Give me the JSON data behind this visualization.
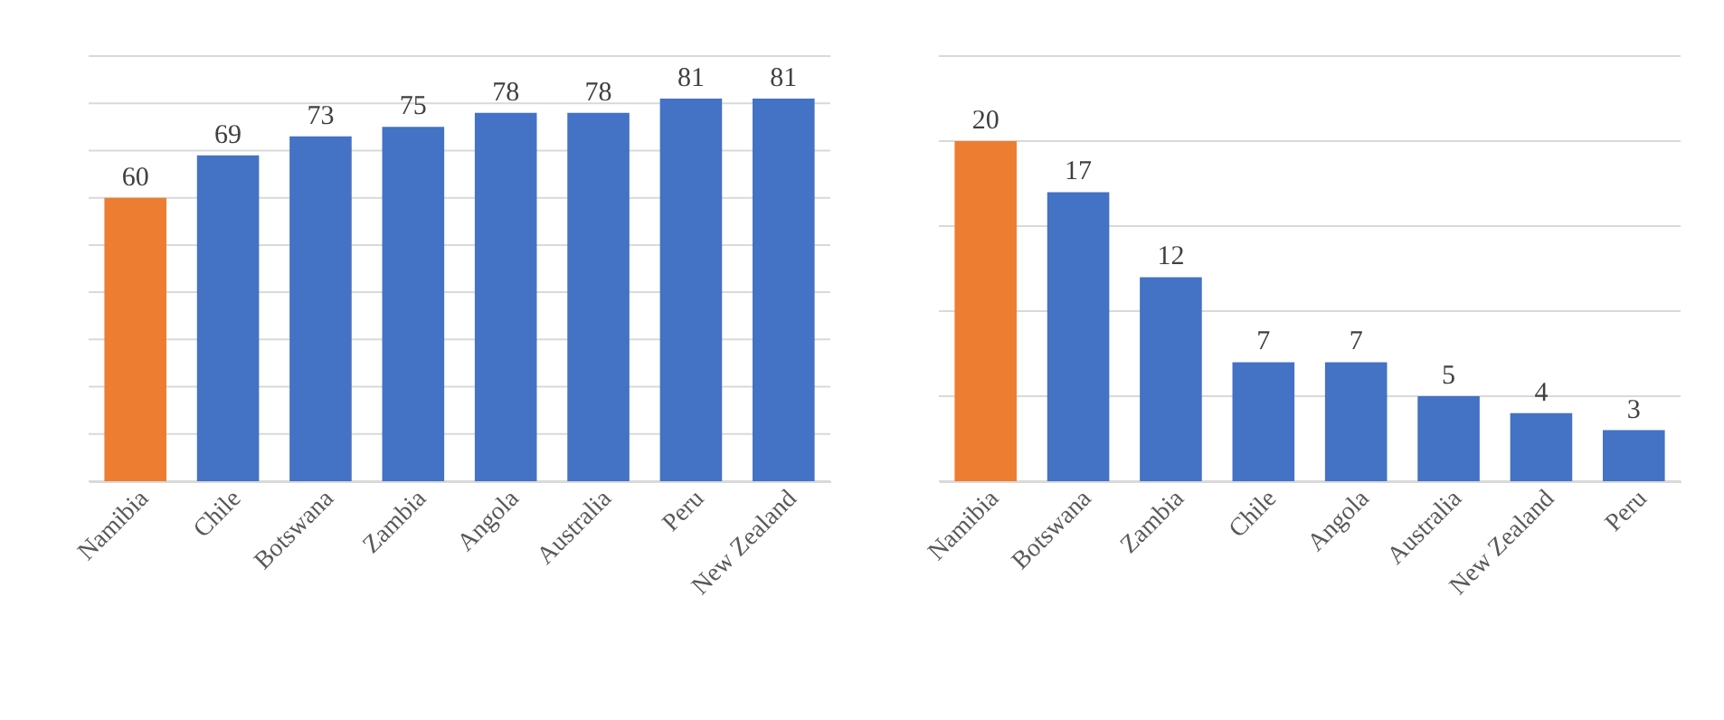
{
  "chart_data": [
    {
      "type": "bar",
      "categories": [
        "Namibia",
        "Chile",
        "Botswana",
        "Zambia",
        "Angola",
        "Australia",
        "Peru",
        "New Zealand"
      ],
      "values": [
        60,
        69,
        73,
        75,
        78,
        78,
        81,
        81
      ],
      "colors": [
        "#ed7d31",
        "#4472c4",
        "#4472c4",
        "#4472c4",
        "#4472c4",
        "#4472c4",
        "#4472c4",
        "#4472c4"
      ],
      "ylim": [
        0,
        90
      ],
      "yticks": [
        {
          "value": 0,
          "label": null
        },
        {
          "value": 10,
          "label": null
        },
        {
          "value": 20,
          "label": null
        },
        {
          "value": 30,
          "label": null
        },
        {
          "value": 40,
          "label": null
        },
        {
          "value": 50,
          "label": null
        },
        {
          "value": 60,
          "label": null
        },
        {
          "value": 70,
          "label": null
        },
        {
          "value": 80,
          "label": null
        },
        {
          "value": 90,
          "label": null
        }
      ],
      "grid": "y",
      "tick_labels": "x",
      "data_labels": true
    },
    {
      "type": "bar",
      "categories": [
        "Namibia",
        "Botswana",
        "Zambia",
        "Chile",
        "Angola",
        "Australia",
        "New Zealand",
        "Peru"
      ],
      "values": [
        20,
        17,
        12,
        7,
        7,
        5,
        4,
        3
      ],
      "colors": [
        "#ed7d31",
        "#4472c4",
        "#4472c4",
        "#4472c4",
        "#4472c4",
        "#4472c4",
        "#4472c4",
        "#4472c4"
      ],
      "ylim": [
        0,
        25
      ],
      "yticks": [
        {
          "value": 0,
          "label": null
        },
        {
          "value": 5,
          "label": null
        },
        {
          "value": 10,
          "label": null
        },
        {
          "value": 15,
          "label": null
        },
        {
          "value": 20,
          "label": null
        },
        {
          "value": 25,
          "label": null
        }
      ],
      "grid": "y",
      "tick_labels": "x",
      "data_labels": true
    }
  ]
}
